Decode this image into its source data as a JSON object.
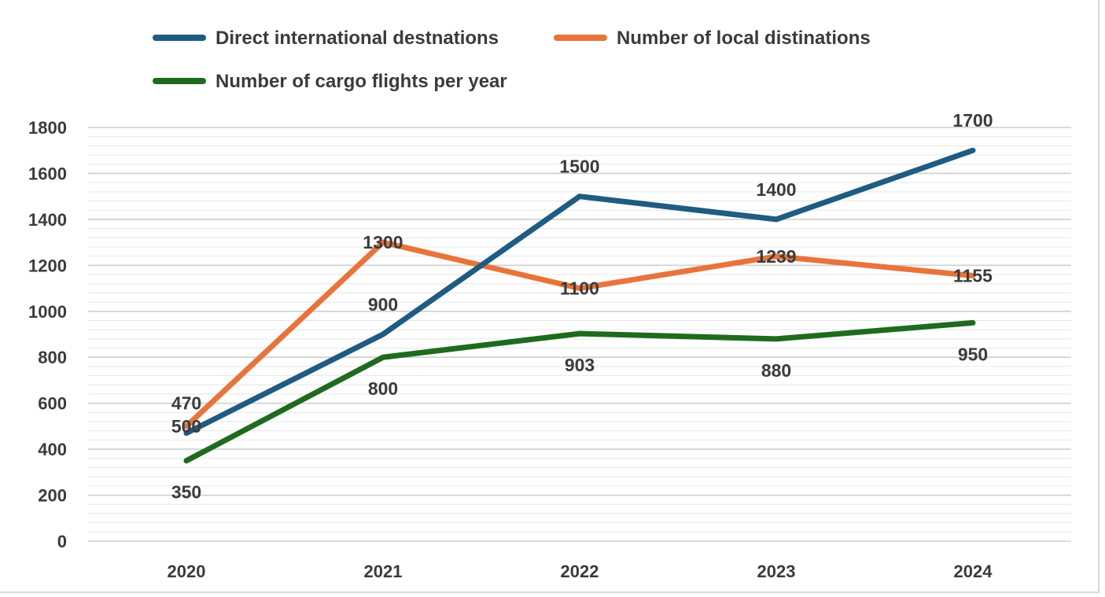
{
  "chart_data": {
    "type": "line",
    "title": "",
    "xlabel": "",
    "ylabel": "",
    "categories": [
      "2020",
      "2021",
      "2022",
      "2023",
      "2024"
    ],
    "ylim": [
      0,
      1800
    ],
    "yticks": [
      0,
      200,
      400,
      600,
      800,
      1000,
      1200,
      1400,
      1600,
      1800
    ],
    "grid": true,
    "legend_position": "top",
    "series": [
      {
        "name": "Direct international destnations",
        "color": "#1f5b82",
        "values": [
          470,
          900,
          1500,
          1400,
          1700
        ],
        "labels": [
          "470",
          "900",
          "1500",
          "1400",
          "1700"
        ],
        "label_side": [
          "above",
          "above",
          "above",
          "above",
          "above"
        ]
      },
      {
        "name": "Number of local distinations",
        "color": "#e8743b",
        "values": [
          500,
          1300,
          1100,
          1239,
          1155
        ],
        "labels": [
          "500",
          "1300",
          "1100",
          "1239",
          "1155"
        ],
        "label_side": [
          "center",
          "center",
          "center",
          "center",
          "center"
        ]
      },
      {
        "name": "Number of cargo flights per year",
        "color": "#1e6b1e",
        "values": [
          350,
          800,
          903,
          880,
          950
        ],
        "labels": [
          "350",
          "800",
          "903",
          "880",
          "950"
        ],
        "label_side": [
          "below",
          "below",
          "below",
          "below",
          "below"
        ]
      }
    ]
  }
}
